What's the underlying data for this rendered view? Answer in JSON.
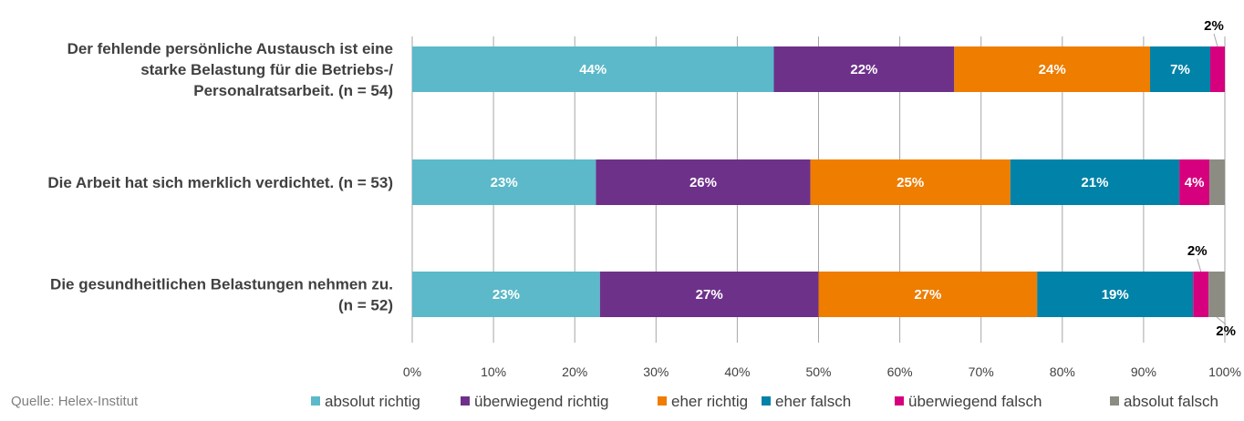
{
  "chart_data": {
    "type": "bar",
    "orientation": "horizontal",
    "stacked": "percent",
    "categories": [
      [
        "Der fehlende persönliche Austausch ist eine",
        "starke Belastung für die Betriebs-/",
        "Personalratsarbeit. (n = 54)"
      ],
      [
        "Die Arbeit hat sich merklich verdichtet. (n = 53)"
      ],
      [
        "Die gesundheitlichen Belastungen nehmen zu.",
        "(n = 52)"
      ]
    ],
    "series": [
      {
        "name": "absolut richtig",
        "color": "#5BB9C9",
        "values": [
          44.5,
          22.6,
          23.1
        ],
        "labels": [
          "44%",
          "23%",
          "23%"
        ]
      },
      {
        "name": "überwiegend richtig",
        "color": "#6E318A",
        "values": [
          22.2,
          26.4,
          26.9
        ],
        "labels": [
          "22%",
          "26%",
          "27%"
        ]
      },
      {
        "name": "eher richtig",
        "color": "#EE7D00",
        "values": [
          24.1,
          24.6,
          26.9
        ],
        "labels": [
          "24%",
          "25%",
          "27%"
        ]
      },
      {
        "name": "eher falsch",
        "color": "#0082A9",
        "values": [
          7.4,
          20.8,
          19.2
        ],
        "labels": [
          "7%",
          "21%",
          "19%"
        ]
      },
      {
        "name": "überwiegend falsch",
        "color": "#D6007E",
        "values": [
          1.8,
          3.7,
          1.9
        ],
        "labels": [
          "2%",
          "4%",
          "2%"
        ]
      },
      {
        "name": "absolut falsch",
        "color": "#8C8C82",
        "values": [
          0,
          1.9,
          2.0
        ],
        "labels": [
          "",
          "",
          "2%"
        ]
      }
    ],
    "xlim": [
      0,
      100
    ],
    "xticks": [
      "0%",
      "10%",
      "20%",
      "30%",
      "40%",
      "50%",
      "60%",
      "70%",
      "80%",
      "90%",
      "100%"
    ],
    "grid": true,
    "legend_position": "bottom"
  },
  "source": "Quelle: Helex-Institut"
}
